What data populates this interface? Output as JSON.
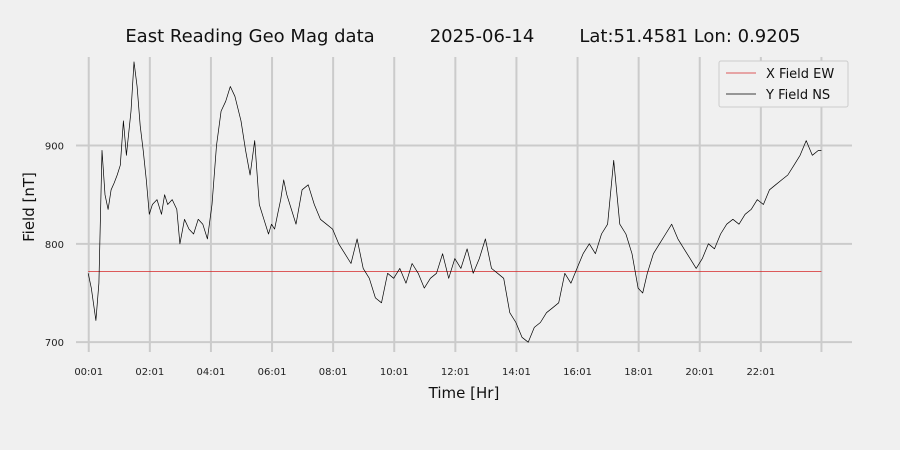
{
  "chart_data": {
    "type": "line",
    "title_parts": [
      "East Reading Geo Mag data",
      "2025-06-14",
      "Lat:51.4581  Lon: 0.9205"
    ],
    "xlabel": "Time  [Hr]",
    "ylabel": "Field  [nT]",
    "x_unit": "hours",
    "xlim": [
      -0.4,
      25.0
    ],
    "ylim": [
      690,
      990
    ],
    "x_ticks": [
      0.0167,
      2.0167,
      4.0167,
      6.0167,
      8.0167,
      10.0167,
      12.0167,
      14.0167,
      16.0167,
      18.0167,
      20.0167,
      22.0167,
      24.0
    ],
    "x_tick_labels": [
      "00:01",
      "02:01",
      "04:01",
      "06:01",
      "08:01",
      "10:01",
      "12:01",
      "14:01",
      "16:01",
      "18:01",
      "20:01",
      "22:01",
      ""
    ],
    "y_ticks": [
      700,
      800,
      900
    ],
    "y_tick_labels": [
      "700",
      "800",
      "900"
    ],
    "grid": true,
    "legend_position": "top-right",
    "series": [
      {
        "name": "X Field EW",
        "color": "#d62728",
        "x": [
          0.0,
          24.0
        ],
        "y": [
          772,
          772
        ]
      },
      {
        "name": "Y Field NS",
        "color": "#000000",
        "x": [
          0.0,
          0.1,
          0.25,
          0.35,
          0.45,
          0.55,
          0.65,
          0.75,
          0.85,
          0.95,
          1.05,
          1.15,
          1.25,
          1.4,
          1.5,
          1.6,
          1.7,
          1.8,
          1.9,
          2.0,
          2.1,
          2.25,
          2.4,
          2.5,
          2.6,
          2.75,
          2.9,
          3.0,
          3.15,
          3.3,
          3.45,
          3.6,
          3.75,
          3.9,
          4.05,
          4.2,
          4.35,
          4.5,
          4.65,
          4.8,
          5.0,
          5.15,
          5.3,
          5.45,
          5.6,
          5.75,
          5.9,
          6.0,
          6.1,
          6.2,
          6.3,
          6.4,
          6.5,
          6.65,
          6.8,
          7.0,
          7.2,
          7.4,
          7.6,
          7.8,
          8.0,
          8.2,
          8.4,
          8.6,
          8.8,
          9.0,
          9.2,
          9.4,
          9.6,
          9.8,
          10.0,
          10.2,
          10.4,
          10.6,
          10.8,
          11.0,
          11.2,
          11.4,
          11.6,
          11.8,
          12.0,
          12.2,
          12.4,
          12.6,
          12.8,
          13.0,
          13.2,
          13.4,
          13.6,
          13.8,
          14.0,
          14.2,
          14.4,
          14.6,
          14.8,
          15.0,
          15.2,
          15.4,
          15.6,
          15.8,
          16.0,
          16.2,
          16.4,
          16.6,
          16.8,
          17.0,
          17.2,
          17.4,
          17.6,
          17.8,
          18.0,
          18.15,
          18.3,
          18.5,
          18.7,
          18.9,
          19.1,
          19.3,
          19.5,
          19.7,
          19.9,
          20.1,
          20.3,
          20.5,
          20.7,
          20.9,
          21.1,
          21.3,
          21.5,
          21.7,
          21.9,
          22.1,
          22.3,
          22.5,
          22.7,
          22.9,
          23.1,
          23.3,
          23.5,
          23.7,
          23.9,
          24.0
        ],
        "y": [
          770,
          755,
          722,
          760,
          895,
          850,
          835,
          855,
          862,
          870,
          880,
          925,
          890,
          935,
          985,
          960,
          920,
          895,
          865,
          830,
          840,
          845,
          830,
          850,
          840,
          845,
          835,
          800,
          825,
          815,
          810,
          825,
          820,
          805,
          840,
          900,
          935,
          945,
          960,
          950,
          925,
          895,
          870,
          905,
          840,
          825,
          810,
          820,
          815,
          830,
          845,
          865,
          850,
          835,
          820,
          855,
          860,
          840,
          825,
          820,
          815,
          800,
          790,
          780,
          805,
          775,
          765,
          745,
          740,
          770,
          765,
          775,
          760,
          780,
          770,
          755,
          765,
          770,
          790,
          765,
          785,
          775,
          795,
          770,
          785,
          805,
          775,
          770,
          765,
          730,
          720,
          705,
          700,
          715,
          720,
          730,
          735,
          740,
          770,
          760,
          775,
          790,
          800,
          790,
          810,
          820,
          885,
          820,
          810,
          790,
          755,
          750,
          770,
          790,
          800,
          810,
          820,
          805,
          795,
          785,
          775,
          785,
          800,
          795,
          810,
          820,
          825,
          820,
          830,
          835,
          845,
          840,
          855,
          860,
          865,
          870,
          880,
          890,
          905,
          890,
          895,
          895
        ]
      }
    ]
  }
}
